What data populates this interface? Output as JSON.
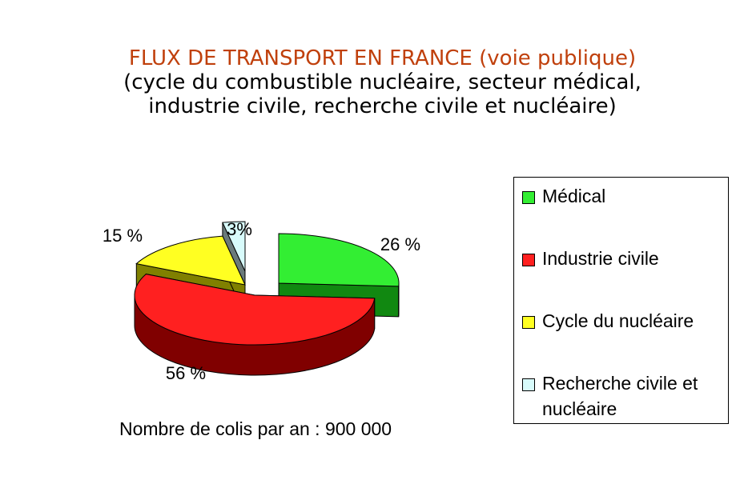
{
  "title": {
    "main": "FLUX DE TRANSPORT EN FRANCE (voie publique)",
    "line2": "(cycle du combustible nucléaire, secteur médical,",
    "line3": "industrie civile, recherche civile et nucléaire)"
  },
  "note": "Nombre de colis par an : 900 000",
  "chart_data": {
    "type": "pie",
    "style": "3d-exploded",
    "slices": [
      {
        "name": "Médical",
        "value": 26,
        "label": "26 %",
        "color": "#33ee33",
        "side_color": "#118811"
      },
      {
        "name": "Industrie civile",
        "value": 56,
        "label": "56 %",
        "color": "#ff2020",
        "side_color": "#800000"
      },
      {
        "name": "Cycle du nucléaire",
        "value": 15,
        "label": "15 %",
        "color": "#ffff22",
        "side_color": "#808000"
      },
      {
        "name": "Recherche civile et nucléaire",
        "value": 3,
        "label": "3%",
        "color": "#d8fbfb",
        "side_color": "#6a7a7a"
      }
    ],
    "legend_position": "right"
  },
  "legend": {
    "items": [
      {
        "label": "Médical",
        "color": "#33ee33"
      },
      {
        "label": "Industrie civile",
        "color": "#ff2020"
      },
      {
        "label": "Cycle du nucléaire",
        "color": "#ffff22"
      },
      {
        "label": "Recherche civile et nucléaire",
        "label_line1": "Recherche civile et",
        "label_line2": "nucléaire",
        "color": "#d8fbfb"
      }
    ]
  }
}
